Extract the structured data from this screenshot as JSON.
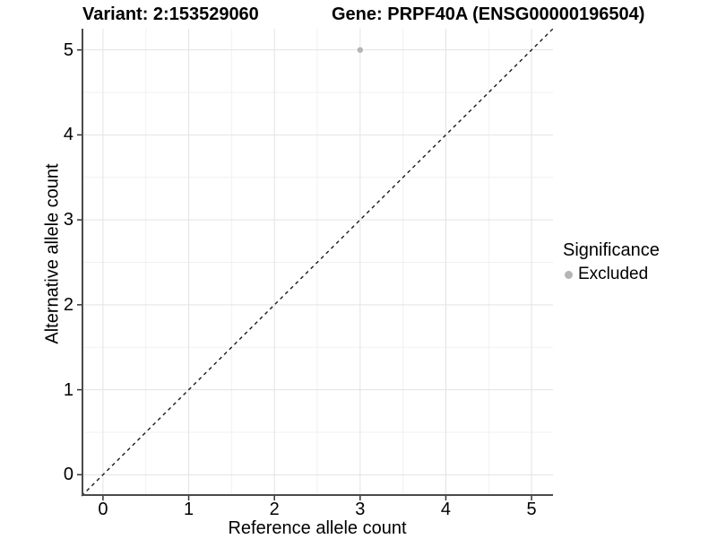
{
  "titles": {
    "left": "Variant: 2:153529060",
    "right": "Gene: PRPF40A (ENSG00000196504)"
  },
  "chart_data": {
    "type": "scatter",
    "title_left": "Variant: 2:153529060",
    "title_right": "Gene: PRPF40A (ENSG00000196504)",
    "xlabel": "Reference allele count",
    "ylabel": "Alternative allele count",
    "xlim": [
      -0.25,
      5.25
    ],
    "ylim": [
      -0.25,
      5.25
    ],
    "x_ticks": [
      0,
      1,
      2,
      3,
      4,
      5
    ],
    "y_ticks": [
      0,
      1,
      2,
      3,
      4,
      5
    ],
    "x_minor_ticks": [
      0.5,
      1.5,
      2.5,
      3.5,
      4.5
    ],
    "y_minor_ticks": [
      0.5,
      1.5,
      2.5,
      3.5,
      4.5
    ],
    "grid": "major+minor",
    "points": [
      {
        "x": 3,
        "y": 5,
        "significance": "Excluded"
      }
    ],
    "identity_line": {
      "from": [
        -0.25,
        -0.25
      ],
      "to": [
        5.25,
        5.25
      ],
      "style": "dashed"
    },
    "legend": {
      "title": "Significance",
      "position": "right",
      "items": [
        {
          "label": "Excluded",
          "color": "#b5b5b5"
        }
      ]
    },
    "colors": {
      "point": "#b5b5b5",
      "grid_major": "#e3e3e3",
      "grid_minor": "#f1f1f1",
      "axis_line": "#4a4a4a",
      "tick_mark": "#333333",
      "identity_line": "#1a1a1a",
      "text": "#000000"
    }
  }
}
